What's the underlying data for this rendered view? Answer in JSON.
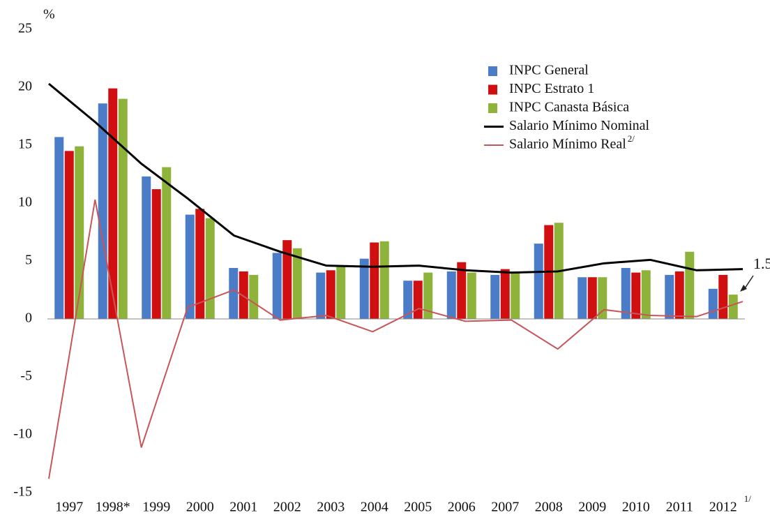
{
  "chart_data": {
    "type": "bar",
    "y_unit": "%",
    "categories": [
      "1997",
      "1998*",
      "1999",
      "2000",
      "2001",
      "2002",
      "2003",
      "2004",
      "2005",
      "2006",
      "2007",
      "2008",
      "2009",
      "2010",
      "2011",
      "2012"
    ],
    "last_category_note": "1/",
    "ylim": [
      -15,
      25
    ],
    "yticks": [
      -15,
      -10,
      -5,
      0,
      5,
      10,
      15,
      20,
      25
    ],
    "legend": "upper right",
    "series": [
      {
        "name": "INPC General",
        "type": "bar",
        "color": "#4a7cc7",
        "values": [
          15.7,
          18.6,
          12.3,
          9.0,
          4.4,
          5.7,
          4.0,
          5.2,
          3.3,
          4.1,
          3.8,
          6.5,
          3.6,
          4.4,
          3.8,
          2.6
        ]
      },
      {
        "name": "INPC Estrato 1",
        "type": "bar",
        "color": "#d01010",
        "values": [
          14.5,
          19.9,
          11.2,
          9.5,
          4.1,
          6.8,
          4.2,
          6.6,
          3.3,
          4.9,
          4.3,
          8.1,
          3.6,
          4.0,
          4.1,
          3.8
        ]
      },
      {
        "name": "INPC Canasta Básica",
        "type": "bar",
        "color": "#8db33a",
        "values": [
          14.9,
          19.0,
          13.1,
          8.7,
          3.8,
          6.1,
          4.5,
          6.7,
          4.0,
          4.0,
          4.0,
          8.3,
          3.6,
          4.2,
          5.8,
          2.1
        ]
      },
      {
        "name": "Salario Mínimo Nominal",
        "type": "line",
        "color": "#000000",
        "values": [
          20.3,
          17.0,
          13.4,
          10.4,
          7.2,
          5.8,
          4.6,
          4.5,
          4.6,
          4.2,
          4.0,
          4.1,
          4.8,
          5.1,
          4.2,
          4.3
        ]
      },
      {
        "name": "Salario Mínimo Real",
        "name_note": "2/",
        "type": "line",
        "color": "#c8555a",
        "values": [
          -13.8,
          10.3,
          -11.1,
          1.0,
          2.5,
          -0.1,
          0.3,
          -1.1,
          0.9,
          -0.2,
          -0.1,
          -2.6,
          0.8,
          0.3,
          0.2,
          1.5
        ]
      }
    ],
    "annotation": "1.5"
  }
}
